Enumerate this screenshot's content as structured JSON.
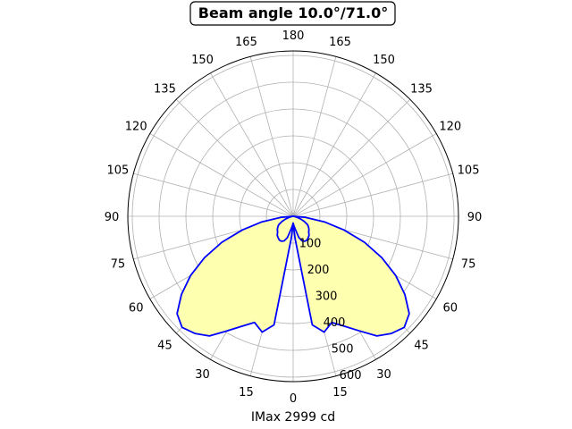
{
  "chart_data": {
    "type": "polar-line",
    "title": "Beam angle 10.0°/71.0°",
    "xlabel": "IMax 2999 cd",
    "rticks": [
      "100",
      "200",
      "300",
      "400",
      "500",
      "600"
    ],
    "rlim": [
      0,
      600
    ],
    "angle_tick_labels": [
      "0",
      "15",
      "30",
      "45",
      "60",
      "75",
      "90",
      "105",
      "120",
      "135",
      "150",
      "165",
      "180",
      "165",
      "150",
      "135",
      "120",
      "105",
      "90",
      "75",
      "60",
      "45",
      "30",
      "15"
    ],
    "grid": true,
    "colors": {
      "curve": "#0000ff",
      "fill": "#ffffb0",
      "grid": "#b0b0b0"
    },
    "series": [
      {
        "angle_deg": [
          0,
          5,
          10,
          15,
          20,
          25,
          30,
          35,
          40,
          45,
          50,
          55,
          60,
          65,
          70,
          75,
          80,
          85,
          90
        ],
        "values": [
          25,
          80,
          400,
          435,
          410,
          440,
          480,
          530,
          555,
          570,
          550,
          495,
          430,
          355,
          275,
          190,
          115,
          45,
          0
        ]
      },
      {
        "angle_deg": [
          0,
          5,
          10,
          15,
          20,
          25,
          30,
          35,
          40,
          45,
          50,
          55,
          60,
          65,
          70,
          75,
          80,
          85,
          90
        ],
        "values": [
          25,
          35,
          50,
          80,
          95,
          100,
          100,
          95,
          90,
          80,
          75,
          68,
          60,
          45,
          30,
          15,
          5,
          0,
          0
        ]
      }
    ]
  }
}
